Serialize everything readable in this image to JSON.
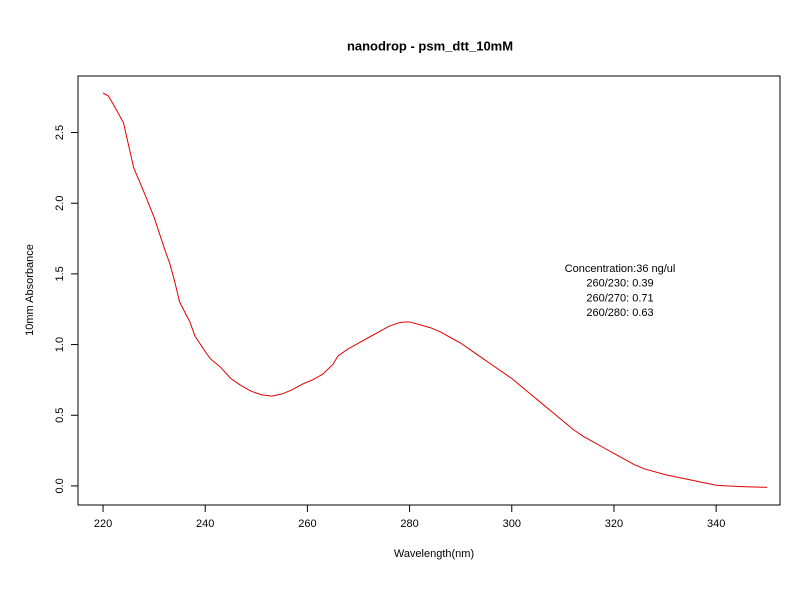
{
  "chart_data": {
    "type": "line",
    "title": "nanodrop - psm_dtt_10mM",
    "x_label": "Wavelength(nm)",
    "y_label": "10mm Absorbance",
    "x": [
      220,
      221,
      222,
      224,
      226,
      228,
      230,
      232,
      233,
      234,
      235,
      237,
      238,
      240,
      241,
      243,
      245,
      247,
      249,
      251,
      253,
      255,
      257,
      259,
      261,
      263,
      265,
      266,
      268,
      270,
      272,
      274,
      276,
      278,
      279,
      280,
      282,
      284,
      286,
      288,
      290,
      292,
      294,
      296,
      298,
      300,
      302,
      304,
      306,
      308,
      310,
      312,
      314,
      316,
      318,
      320,
      322,
      324,
      326,
      328,
      330,
      332,
      334,
      336,
      338,
      340,
      342,
      345,
      350
    ],
    "series": [
      {
        "color": "#e00000",
        "values": [
          2.78,
          2.76,
          2.7,
          2.57,
          2.25,
          2.08,
          1.9,
          1.68,
          1.58,
          1.45,
          1.3,
          1.16,
          1.06,
          0.95,
          0.9,
          0.84,
          0.76,
          0.71,
          0.67,
          0.645,
          0.635,
          0.65,
          0.68,
          0.72,
          0.75,
          0.79,
          0.86,
          0.92,
          0.97,
          1.01,
          1.05,
          1.09,
          1.13,
          1.155,
          1.16,
          1.16,
          1.14,
          1.12,
          1.09,
          1.05,
          1.01,
          0.96,
          0.91,
          0.86,
          0.81,
          0.76,
          0.7,
          0.64,
          0.58,
          0.52,
          0.46,
          0.4,
          0.35,
          0.31,
          0.27,
          0.23,
          0.19,
          0.15,
          0.12,
          0.1,
          0.08,
          0.065,
          0.05,
          0.035,
          0.02,
          0.005,
          0.0,
          -0.005,
          -0.01
        ]
      }
    ],
    "xlim": [
      215.1,
      352.5
    ],
    "ylim": [
      -0.135,
      2.9
    ],
    "xticks": [
      220,
      240,
      260,
      280,
      300,
      320,
      340
    ],
    "yticks": [
      {
        "value": 0,
        "label": "0.0"
      },
      0.5,
      {
        "value": 1,
        "label": "1.0"
      },
      1.5,
      {
        "value": 2,
        "label": "2.0"
      },
      2.5
    ],
    "annotations": [
      "Concentration:36 ng/ul",
      "260/230: 0.39",
      "260/270: 0.71",
      "260/280: 0.63"
    ]
  }
}
